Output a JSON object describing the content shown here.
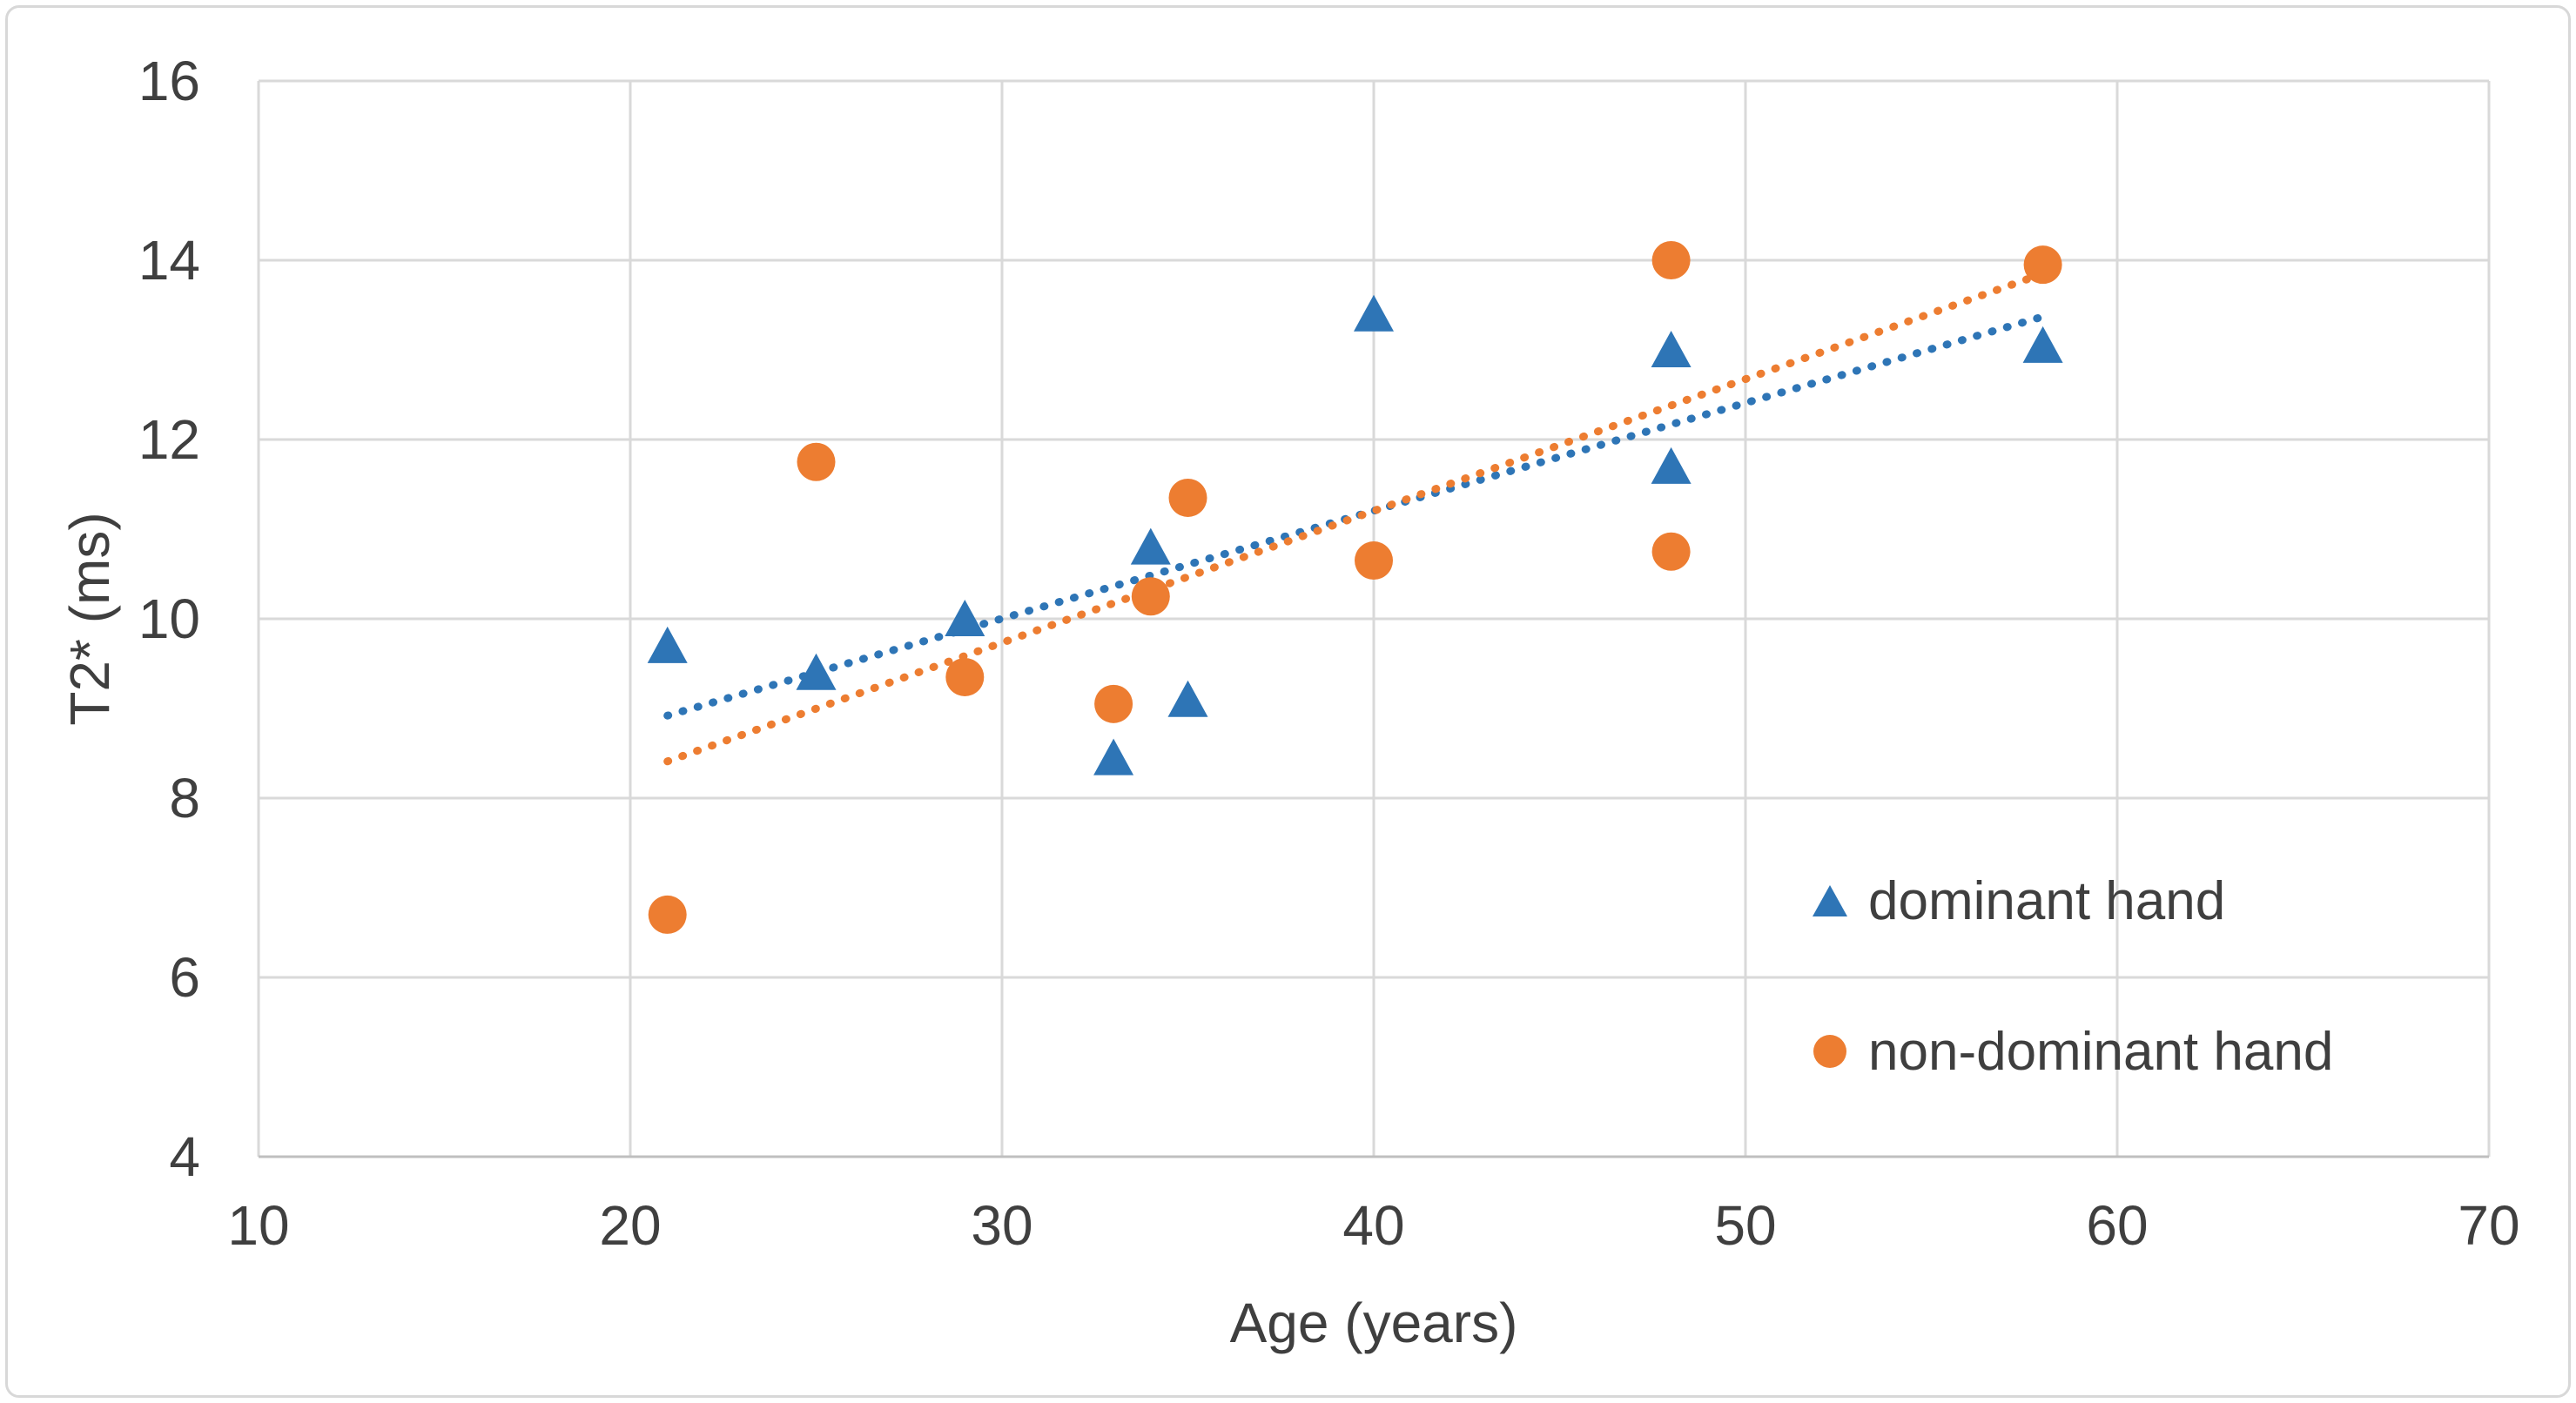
{
  "figure": {
    "background": "#ffffff",
    "border_color": "#d8d8d8",
    "gridline_color": "#d9d9d9",
    "axis_line_color": "#bfbfbf",
    "text_color": "#3f3f3f"
  },
  "chart_data": {
    "type": "scatter",
    "title": "",
    "xlabel": "Age (years)",
    "ylabel": "T2* (ms)",
    "xlim": [
      10,
      70
    ],
    "ylim": [
      4,
      16
    ],
    "x_ticks": [
      10,
      20,
      30,
      40,
      50,
      60,
      70
    ],
    "y_ticks": [
      4,
      6,
      8,
      10,
      12,
      14,
      16
    ],
    "grid": true,
    "legend_position": "inside-bottom-right",
    "series": [
      {
        "name": "dominant hand",
        "marker": "triangle",
        "color": "#2E75B6",
        "points": [
          [
            21,
            9.7
          ],
          [
            25,
            9.4
          ],
          [
            29,
            10.0
          ],
          [
            33,
            8.45
          ],
          [
            34,
            10.8
          ],
          [
            35,
            9.1
          ],
          [
            40,
            13.4
          ],
          [
            48,
            11.7
          ],
          [
            48,
            13.0
          ],
          [
            58,
            13.05
          ]
        ],
        "trendline": {
          "style": "dotted",
          "x1": 21,
          "y1": 8.92,
          "x2": 58,
          "y2": 13.37
        }
      },
      {
        "name": "non-dominant hand",
        "marker": "circle",
        "color": "#ED7D31",
        "points": [
          [
            21,
            6.7
          ],
          [
            25,
            11.75
          ],
          [
            29,
            9.35
          ],
          [
            33,
            9.05
          ],
          [
            34,
            10.25
          ],
          [
            35,
            11.35
          ],
          [
            40,
            10.65
          ],
          [
            48,
            10.75
          ],
          [
            48,
            14.0
          ],
          [
            58,
            13.95
          ]
        ],
        "trendline": {
          "style": "dotted",
          "x1": 21,
          "y1": 8.41,
          "x2": 58,
          "y2": 13.85
        }
      }
    ]
  },
  "legend": {
    "items": [
      {
        "label": "dominant hand"
      },
      {
        "label": "non-dominant hand"
      }
    ]
  }
}
